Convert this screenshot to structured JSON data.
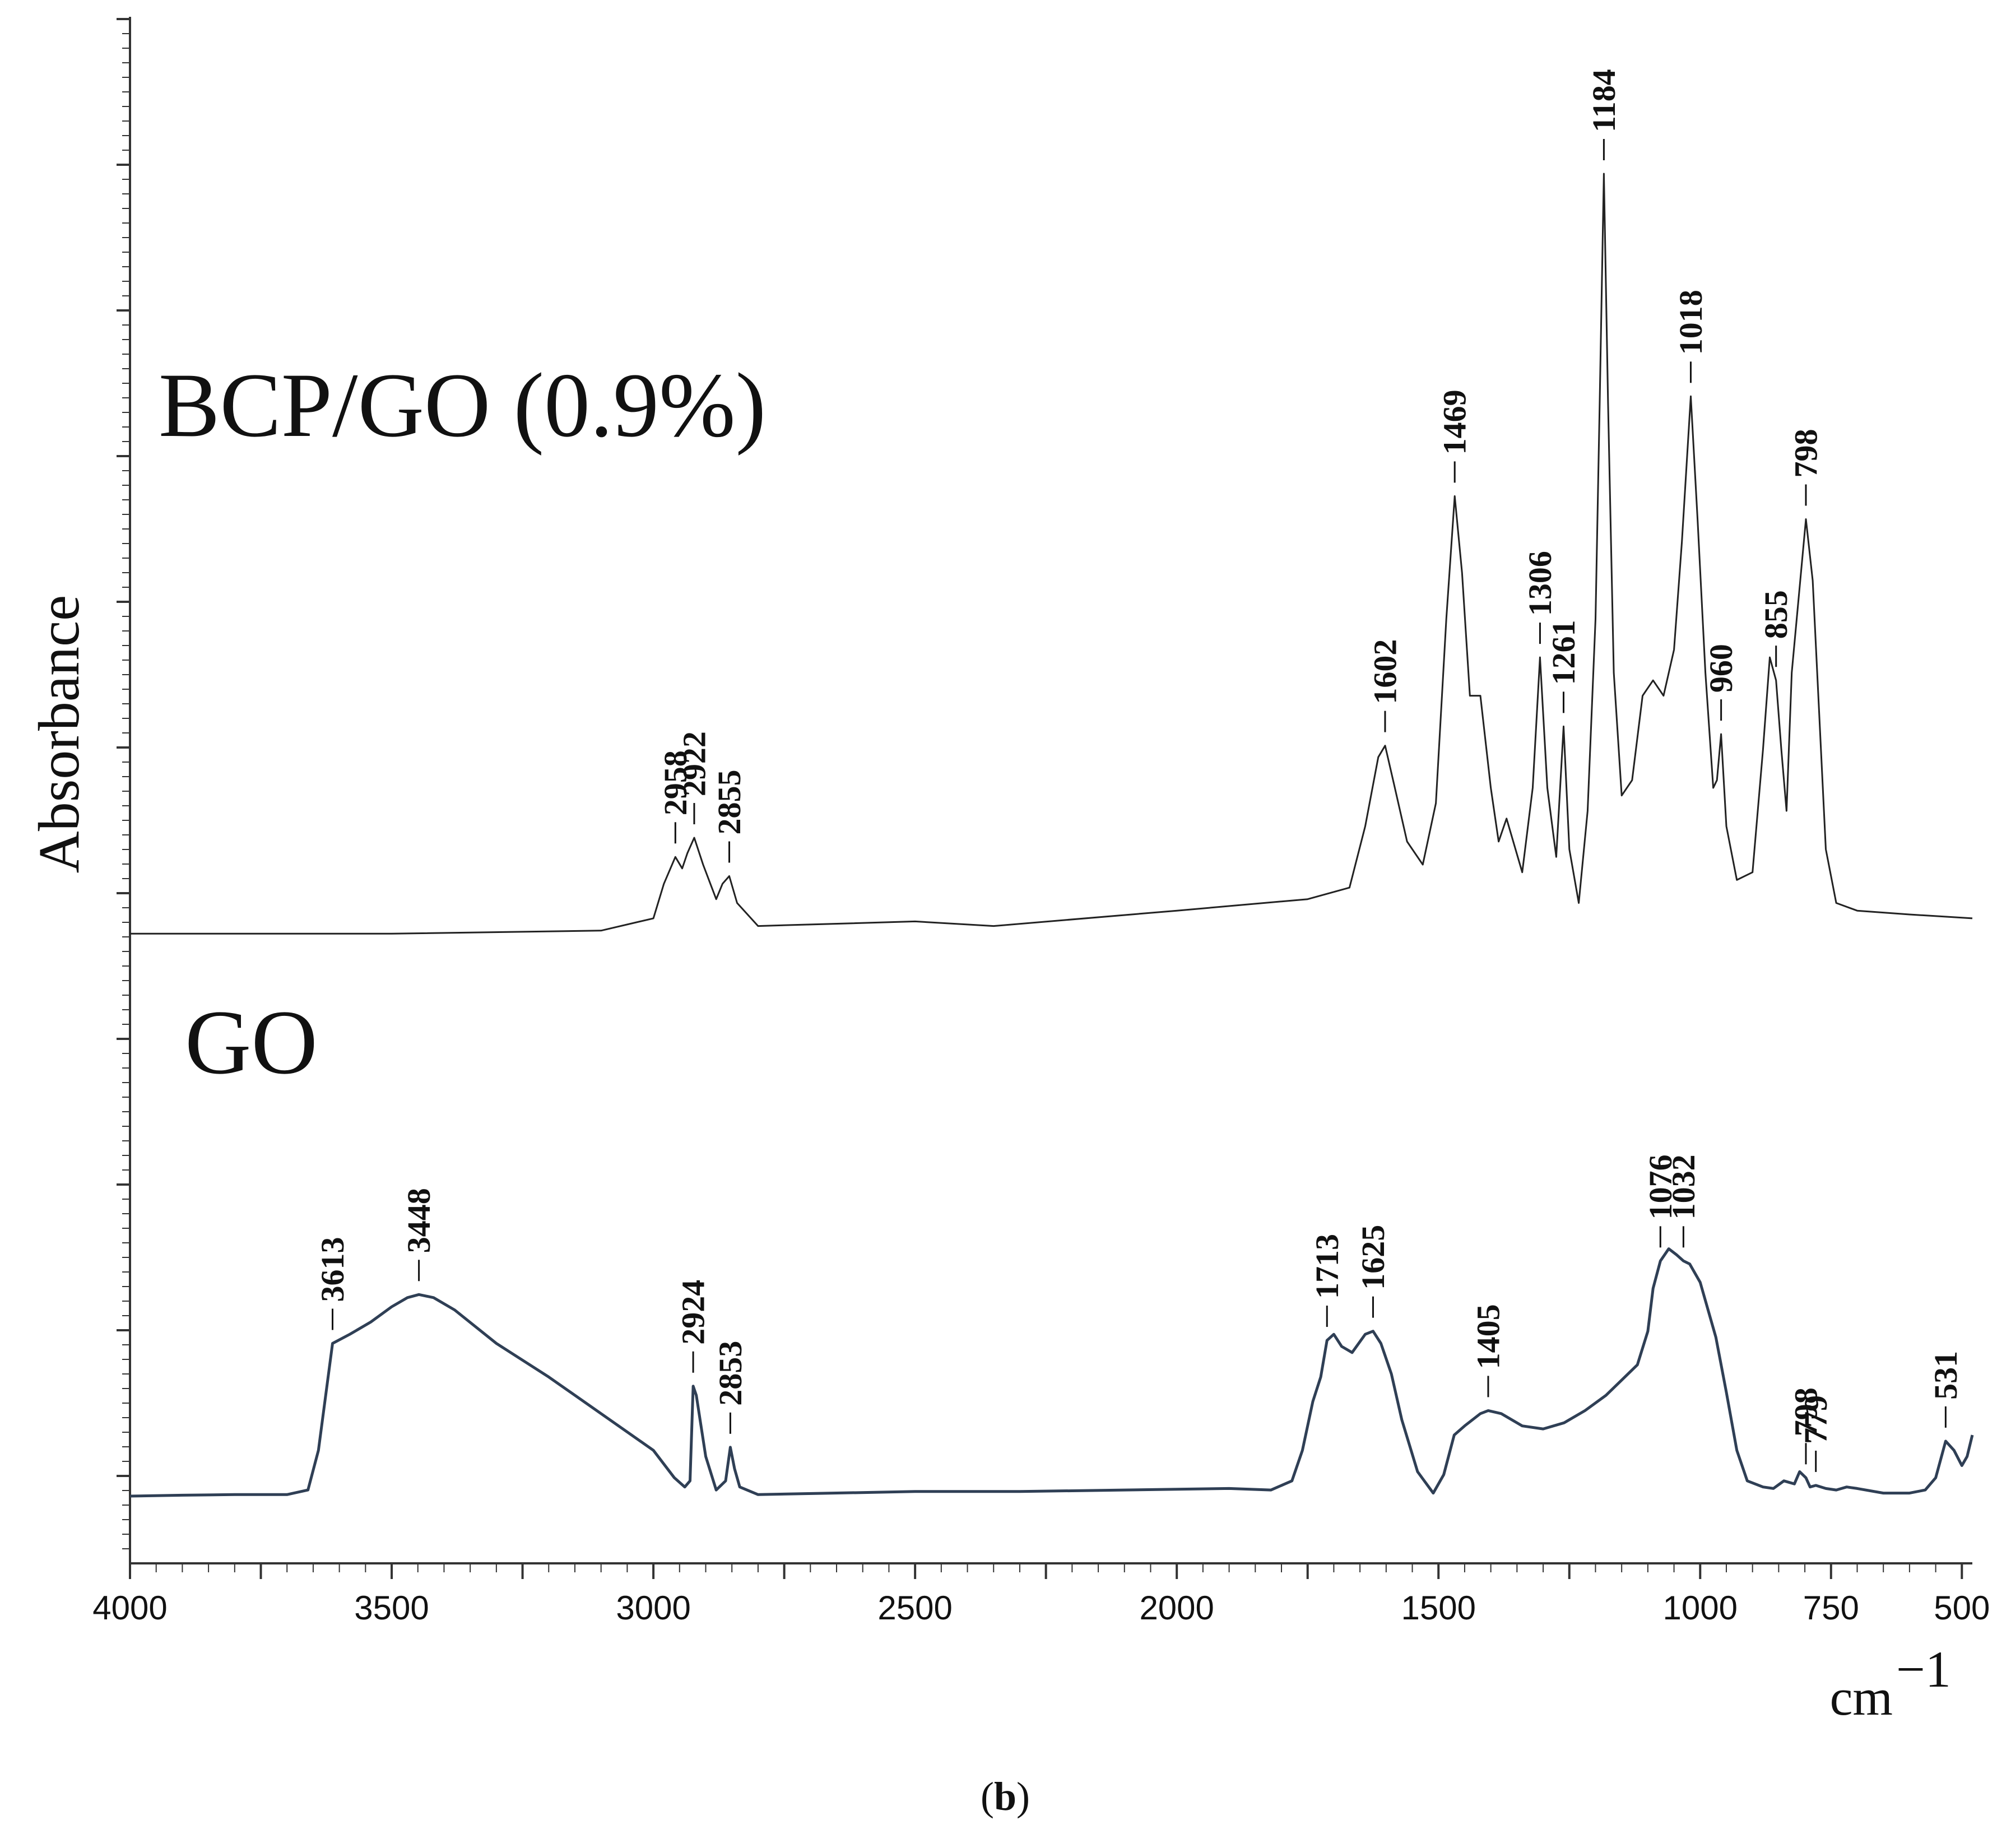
{
  "chart_data": {
    "type": "line",
    "xlabel": "cm",
    "xlabel_superscript": "−1",
    "ylabel": "Absorbance",
    "xlim": [
      4000,
      480
    ],
    "x_reversed": true,
    "xticks": [
      4000,
      3500,
      3000,
      2500,
      2000,
      1500,
      1000,
      750,
      500
    ],
    "caption_open": "(",
    "caption_letter": "b",
    "caption_close": ")",
    "series": [
      {
        "name": "BCP/GO (0.9%)",
        "color": "#222222",
        "x": [
          4000,
          3500,
          3100,
          3000,
          2980,
          2958,
          2945,
          2935,
          2922,
          2905,
          2880,
          2868,
          2855,
          2840,
          2800,
          2500,
          2350,
          2000,
          1750,
          1670,
          1640,
          1615,
          1602,
          1585,
          1560,
          1530,
          1505,
          1485,
          1469,
          1455,
          1440,
          1420,
          1400,
          1385,
          1370,
          1340,
          1320,
          1306,
          1292,
          1275,
          1261,
          1250,
          1232,
          1215,
          1200,
          1192,
          1184,
          1176,
          1165,
          1150,
          1130,
          1110,
          1090,
          1070,
          1050,
          1035,
          1018,
          1005,
          990,
          975,
          968,
          960,
          950,
          930,
          900,
          880,
          867,
          855,
          845,
          835,
          825,
          798,
          785,
          760,
          740,
          700,
          600,
          480
        ],
        "values": [
          0.01,
          0.01,
          0.014,
          0.03,
          0.075,
          0.11,
          0.095,
          0.115,
          0.135,
          0.1,
          0.055,
          0.075,
          0.085,
          0.05,
          0.02,
          0.026,
          0.02,
          0.04,
          0.055,
          0.07,
          0.15,
          0.24,
          0.255,
          0.205,
          0.13,
          0.1,
          0.18,
          0.42,
          0.58,
          0.48,
          0.32,
          0.32,
          0.2,
          0.13,
          0.16,
          0.09,
          0.2,
          0.37,
          0.2,
          0.11,
          0.28,
          0.12,
          0.05,
          0.17,
          0.42,
          0.7,
          1.0,
          0.7,
          0.35,
          0.19,
          0.21,
          0.32,
          0.34,
          0.32,
          0.38,
          0.52,
          0.71,
          0.55,
          0.35,
          0.2,
          0.21,
          0.27,
          0.15,
          0.08,
          0.09,
          0.25,
          0.37,
          0.34,
          0.25,
          0.17,
          0.35,
          0.55,
          0.47,
          0.12,
          0.05,
          0.04,
          0.035,
          0.03
        ]
      },
      {
        "name": "GO",
        "color": "#2f3f55",
        "x": [
          4000,
          3900,
          3800,
          3700,
          3660,
          3640,
          3613,
          3580,
          3540,
          3500,
          3470,
          3448,
          3420,
          3380,
          3300,
          3200,
          3100,
          3000,
          2960,
          2940,
          2930,
          2924,
          2918,
          2900,
          2880,
          2862,
          2853,
          2845,
          2835,
          2800,
          2500,
          2300,
          2100,
          1900,
          1820,
          1780,
          1760,
          1740,
          1725,
          1713,
          1700,
          1685,
          1665,
          1640,
          1625,
          1610,
          1590,
          1570,
          1540,
          1510,
          1490,
          1470,
          1450,
          1420,
          1405,
          1380,
          1340,
          1300,
          1260,
          1220,
          1180,
          1150,
          1120,
          1100,
          1090,
          1076,
          1060,
          1045,
          1032,
          1020,
          1000,
          970,
          950,
          930,
          910,
          880,
          860,
          840,
          820,
          810,
          798,
          790,
          779,
          760,
          740,
          720,
          700,
          650,
          600,
          570,
          550,
          531,
          515,
          500,
          490,
          480
        ],
        "values": [
          0.0,
          0.003,
          0.005,
          0.005,
          0.02,
          0.15,
          0.5,
          0.53,
          0.57,
          0.62,
          0.65,
          0.66,
          0.65,
          0.61,
          0.5,
          0.39,
          0.27,
          0.15,
          0.06,
          0.03,
          0.05,
          0.36,
          0.33,
          0.13,
          0.02,
          0.05,
          0.16,
          0.09,
          0.03,
          0.005,
          0.015,
          0.015,
          0.02,
          0.025,
          0.02,
          0.05,
          0.15,
          0.31,
          0.39,
          0.51,
          0.53,
          0.49,
          0.47,
          0.53,
          0.54,
          0.5,
          0.4,
          0.25,
          0.08,
          0.01,
          0.07,
          0.2,
          0.23,
          0.27,
          0.28,
          0.27,
          0.23,
          0.22,
          0.24,
          0.28,
          0.33,
          0.38,
          0.43,
          0.54,
          0.68,
          0.77,
          0.81,
          0.79,
          0.77,
          0.76,
          0.7,
          0.52,
          0.34,
          0.15,
          0.05,
          0.03,
          0.025,
          0.05,
          0.04,
          0.08,
          0.06,
          0.03,
          0.035,
          0.025,
          0.02,
          0.03,
          0.025,
          0.01,
          0.01,
          0.02,
          0.06,
          0.18,
          0.15,
          0.1,
          0.13,
          0.2
        ]
      }
    ],
    "peak_labels": {
      "BCP/GO (0.9%)": [
        "2958",
        "2922",
        "2855",
        "1602",
        "1469",
        "1306",
        "1261",
        "1184",
        "1018",
        "960",
        "855",
        "798"
      ],
      "GO": [
        "3613",
        "3448",
        "2924",
        "2853",
        "1713",
        "1625",
        "1405",
        "1076",
        "1032",
        "798",
        "779",
        "531"
      ]
    }
  }
}
